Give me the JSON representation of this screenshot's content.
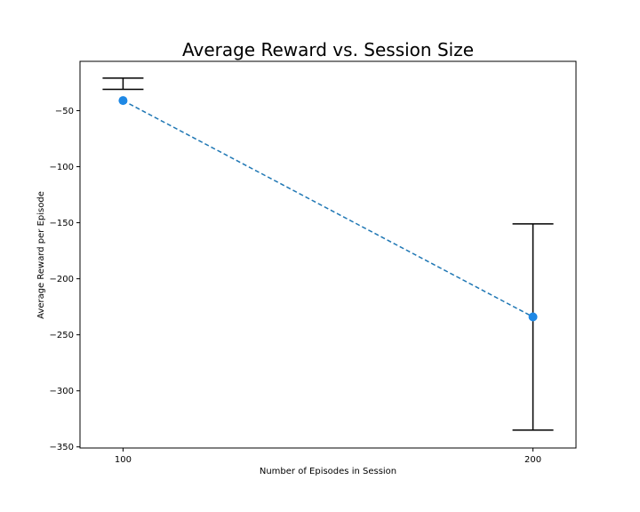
{
  "chart_data": {
    "type": "line",
    "title": "Average Reward vs. Session Size",
    "xlabel": "Number of Episodes in Session",
    "ylabel": "Average Reward per Episode",
    "x": [
      100,
      200
    ],
    "y": [
      -41,
      -234
    ],
    "error": [
      {
        "lower": -31,
        "upper": -21
      },
      {
        "lower": -335,
        "upper": -151
      }
    ],
    "xticks": [
      100,
      200
    ],
    "yticks": [
      -50,
      -100,
      -150,
      -200,
      -250,
      -300,
      -350
    ],
    "xlim": [
      89.5,
      210.5
    ],
    "ylim": [
      -351,
      -6
    ],
    "line_style": "dashed",
    "line_color": "#1f77b4",
    "marker_color": "#1e88e5",
    "errorbar_color": "#000000",
    "grid": false,
    "legend": "none"
  }
}
